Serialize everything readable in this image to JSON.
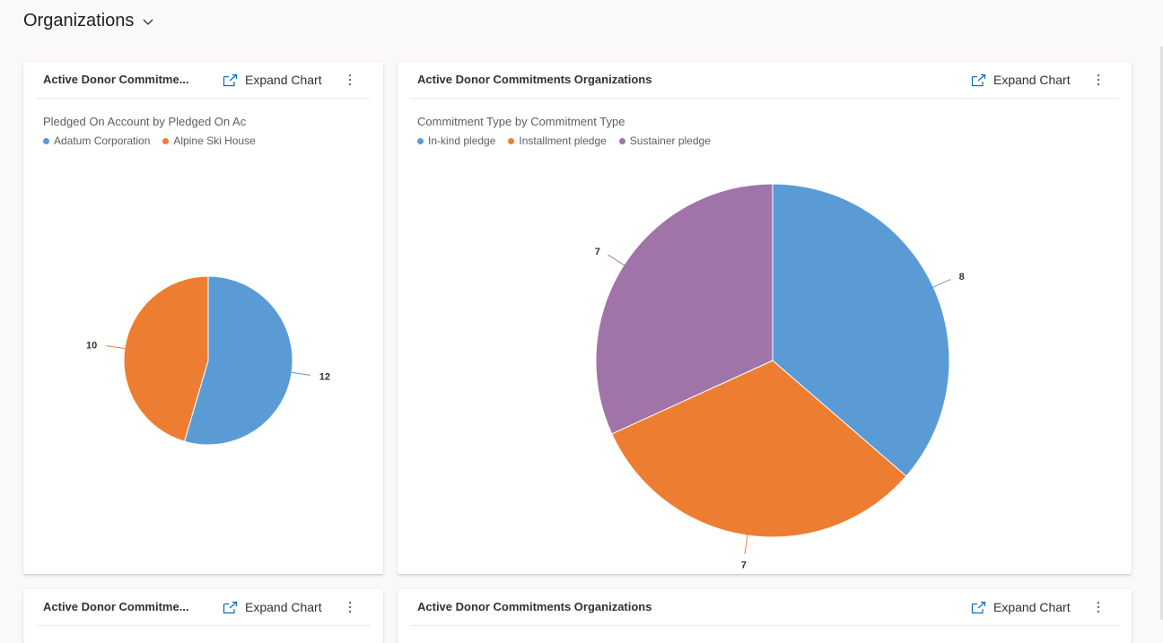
{
  "dashboard": {
    "title": "Organizations"
  },
  "cards": [
    {
      "title": "Active Donor Commitme...",
      "expand_label": "Expand Chart",
      "chart_data": {
        "type": "pie",
        "title": "Pledged On Account by Pledged On Ac",
        "series": [
          {
            "name": "Adatum Corporation",
            "value": 12,
            "color": "#5b9bd5"
          },
          {
            "name": "Alpine Ski House",
            "value": 10,
            "color": "#ed7d31"
          }
        ]
      }
    },
    {
      "title": "Active Donor Commitments Organizations",
      "expand_label": "Expand Chart",
      "chart_data": {
        "type": "pie",
        "title": "Commitment Type by Commitment Type",
        "series": [
          {
            "name": "In-kind pledge",
            "value": 8,
            "color": "#5b9bd5"
          },
          {
            "name": "Installment pledge",
            "value": 7,
            "color": "#ed7d31"
          },
          {
            "name": "Sustainer pledge",
            "value": 7,
            "color": "#a074a8"
          }
        ]
      }
    },
    {
      "title": "Active Donor Commitme...",
      "expand_label": "Expand Chart"
    },
    {
      "title": "Active Donor Commitments Organizations",
      "expand_label": "Expand Chart"
    }
  ]
}
